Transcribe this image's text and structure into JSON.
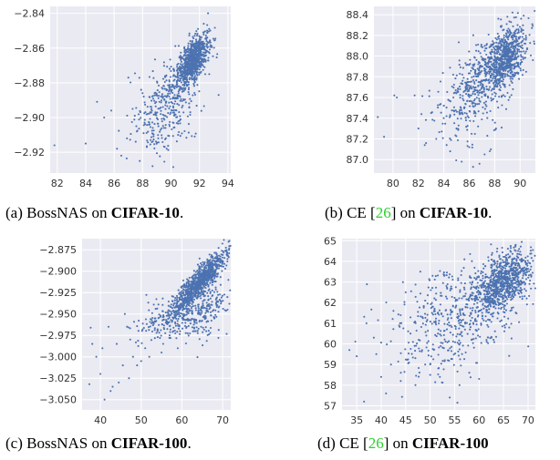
{
  "chart_data": [
    {
      "type": "scatter",
      "caption": {
        "prefix": "(a) BossNAS on ",
        "ref": "",
        "bold": "CIFAR-10",
        "suffix": "."
      },
      "xlabel": "",
      "ylabel": "",
      "grid": true,
      "xlim": [
        81.5,
        94.2
      ],
      "ylim": [
        -2.932,
        -2.836
      ],
      "xticks": [
        82,
        84,
        86,
        88,
        90,
        92,
        94
      ],
      "yticks": [
        -2.92,
        -2.9,
        -2.88,
        -2.86,
        -2.84
      ],
      "point_color": "#4c72b0",
      "points": [
        [
          81.8,
          -2.916
        ],
        [
          84.0,
          -2.915
        ],
        [
          84.8,
          -2.891
        ],
        [
          85.3,
          -2.9
        ],
        [
          85.8,
          -2.896
        ],
        [
          86.2,
          -2.918
        ],
        [
          86.5,
          -2.922
        ],
        [
          86.9,
          -2.912
        ],
        [
          87.3,
          -2.895
        ],
        [
          87.6,
          -2.908
        ],
        [
          87.8,
          -2.925
        ],
        [
          88.0,
          -2.886
        ],
        [
          88.3,
          -2.917
        ],
        [
          88.5,
          -2.904
        ],
        [
          88.7,
          -2.928
        ],
        [
          88.9,
          -2.897
        ],
        [
          89.1,
          -2.912
        ],
        [
          89.3,
          -2.888
        ],
        [
          89.5,
          -2.906
        ],
        [
          89.7,
          -2.918
        ],
        [
          89.9,
          -2.872
        ],
        [
          90.1,
          -2.896
        ],
        [
          90.3,
          -2.882
        ],
        [
          90.5,
          -2.91
        ],
        [
          90.7,
          -2.866
        ],
        [
          90.9,
          -2.89
        ],
        [
          91.1,
          -2.861
        ],
        [
          91.3,
          -2.878
        ],
        [
          91.5,
          -2.856
        ],
        [
          91.7,
          -2.87
        ],
        [
          91.9,
          -2.849
        ],
        [
          92.1,
          -2.862
        ],
        [
          92.3,
          -2.846
        ],
        [
          92.5,
          -2.856
        ],
        [
          92.6,
          -2.84
        ],
        [
          87.0,
          -2.877
        ]
      ],
      "clusters": [
        {
          "n": 720,
          "x": 91.6,
          "y": -2.866,
          "sx": 0.55,
          "sy": 0.007,
          "rho": 0.6
        },
        {
          "n": 260,
          "x": 90.3,
          "y": -2.885,
          "sx": 0.9,
          "sy": 0.009,
          "rho": 0.4
        },
        {
          "n": 150,
          "x": 89.2,
          "y": -2.902,
          "sx": 1.2,
          "sy": 0.01,
          "rho": 0.1
        }
      ]
    },
    {
      "type": "scatter",
      "caption": {
        "prefix": "(b) CE [",
        "ref": "26",
        "bold": "CIFAR-10",
        "suffix": "] on ."
      },
      "xlabel": "",
      "ylabel": "",
      "grid": true,
      "xlim": [
        78.5,
        91.2
      ],
      "ylim": [
        86.87,
        88.48
      ],
      "xticks": [
        80,
        82,
        84,
        86,
        88,
        90
      ],
      "yticks": [
        87.0,
        87.2,
        87.4,
        87.6,
        87.8,
        88.0,
        88.2,
        88.4
      ],
      "point_color": "#4c72b0",
      "points": [
        [
          78.8,
          87.41
        ],
        [
          79.3,
          87.22
        ],
        [
          80.1,
          87.62
        ],
        [
          80.3,
          87.6
        ],
        [
          81.7,
          87.62
        ],
        [
          82.0,
          87.3
        ],
        [
          82.5,
          87.14
        ],
        [
          83.0,
          87.45
        ],
        [
          83.4,
          87.2
        ],
        [
          84.0,
          87.52
        ],
        [
          84.5,
          87.08
        ],
        [
          85.0,
          87.3
        ],
        [
          85.4,
          86.98
        ],
        [
          86.0,
          87.12
        ],
        [
          86.3,
          86.93
        ],
        [
          86.8,
          86.96
        ],
        [
          87.2,
          87.05
        ],
        [
          87.7,
          87.1
        ],
        [
          88.1,
          87.3
        ],
        [
          88.5,
          88.28
        ],
        [
          89.0,
          88.38
        ],
        [
          89.4,
          88.42
        ],
        [
          89.8,
          88.3
        ],
        [
          90.1,
          88.25
        ]
      ],
      "clusters": [
        {
          "n": 780,
          "x": 88.7,
          "y": 87.97,
          "sx": 0.9,
          "sy": 0.15,
          "rho": 0.45
        },
        {
          "n": 280,
          "x": 86.8,
          "y": 87.72,
          "sx": 1.2,
          "sy": 0.2,
          "rho": 0.35
        },
        {
          "n": 100,
          "x": 85.3,
          "y": 87.48,
          "sx": 1.4,
          "sy": 0.22,
          "rho": 0.2
        }
      ]
    },
    {
      "type": "scatter",
      "caption": {
        "prefix": "(c) BossNAS on ",
        "ref": "",
        "bold": "CIFAR-100",
        "suffix": "."
      },
      "xlabel": "",
      "ylabel": "",
      "grid": true,
      "xlim": [
        35.5,
        72.0
      ],
      "ylim": [
        -3.062,
        -2.862
      ],
      "xticks": [
        40,
        50,
        60,
        70
      ],
      "yticks": [
        -3.05,
        -3.025,
        -3.0,
        -2.975,
        -2.95,
        -2.925,
        -2.9,
        -2.875
      ],
      "point_color": "#4c72b0",
      "points": [
        [
          37.3,
          -3.032
        ],
        [
          37.6,
          -2.966
        ],
        [
          38.0,
          -2.985
        ],
        [
          39.0,
          -3.0
        ],
        [
          40.0,
          -3.02
        ],
        [
          40.5,
          -2.99
        ],
        [
          41.0,
          -3.05
        ],
        [
          42.0,
          -2.965
        ],
        [
          42.5,
          -3.04
        ],
        [
          43.0,
          -3.035
        ],
        [
          44.0,
          -2.985
        ],
        [
          44.5,
          -3.03
        ],
        [
          45.5,
          -3.01
        ],
        [
          46.0,
          -2.95
        ],
        [
          47.0,
          -3.025
        ],
        [
          48.0,
          -3.0
        ],
        [
          49.0,
          -3.01
        ],
        [
          50.0,
          -3.005
        ],
        [
          51.0,
          -2.99
        ],
        [
          52.0,
          -3.0
        ],
        [
          53.0,
          -2.96
        ],
        [
          55.0,
          -2.995
        ],
        [
          57.0,
          -2.975
        ],
        [
          59.0,
          -2.99
        ]
      ],
      "clusters": [
        {
          "n": 900,
          "x": 64.5,
          "y": -2.912,
          "sx": 3.2,
          "sy": 0.018,
          "rho": 0.88
        },
        {
          "n": 280,
          "x": 58.0,
          "y": -2.952,
          "sx": 5.0,
          "sy": 0.014,
          "rho": 0.6
        },
        {
          "n": 160,
          "x": 66.0,
          "y": -2.945,
          "sx": 2.8,
          "sy": 0.02,
          "rho": 0.3
        }
      ]
    },
    {
      "type": "scatter",
      "caption": {
        "prefix": "(d) CE [",
        "ref": "26",
        "bold": "CIFAR-100",
        "suffix": "] on "
      },
      "xlabel": "",
      "ylabel": "",
      "grid": true,
      "xlim": [
        32.0,
        71.5
      ],
      "ylim": [
        56.8,
        65.1
      ],
      "xticks": [
        35,
        40,
        45,
        50,
        55,
        60,
        65,
        70
      ],
      "yticks": [
        57,
        58,
        59,
        60,
        61,
        62,
        63,
        64,
        65
      ],
      "point_color": "#4c72b0",
      "points": [
        [
          33.5,
          59.7
        ],
        [
          35.0,
          59.4
        ],
        [
          36.5,
          57.2
        ],
        [
          37.0,
          61.0
        ],
        [
          38.5,
          60.3
        ],
        [
          39.0,
          59.5
        ],
        [
          40.0,
          58.4
        ],
        [
          41.0,
          57.6
        ],
        [
          42.0,
          59.0
        ],
        [
          42.5,
          61.6
        ],
        [
          44.0,
          58.2
        ],
        [
          45.0,
          62.5
        ],
        [
          46.0,
          60.5
        ],
        [
          47.0,
          58.0
        ],
        [
          48.0,
          63.5
        ],
        [
          49.0,
          59.0
        ],
        [
          50.5,
          63.3
        ],
        [
          52.0,
          58.4
        ],
        [
          54.0,
          57.4
        ],
        [
          56.0,
          58.0
        ],
        [
          57.0,
          64.1
        ],
        [
          58.0,
          58.6
        ],
        [
          60.0,
          58.3
        ]
      ],
      "clusters": [
        {
          "n": 820,
          "x": 65.0,
          "y": 63.0,
          "sx": 2.8,
          "sy": 0.75,
          "rho": 0.45
        },
        {
          "n": 420,
          "x": 57.0,
          "y": 61.5,
          "sx": 6.0,
          "sy": 1.2,
          "rho": 0.3
        },
        {
          "n": 120,
          "x": 50.0,
          "y": 60.5,
          "sx": 6.0,
          "sy": 1.5,
          "rho": 0.1
        }
      ]
    }
  ]
}
